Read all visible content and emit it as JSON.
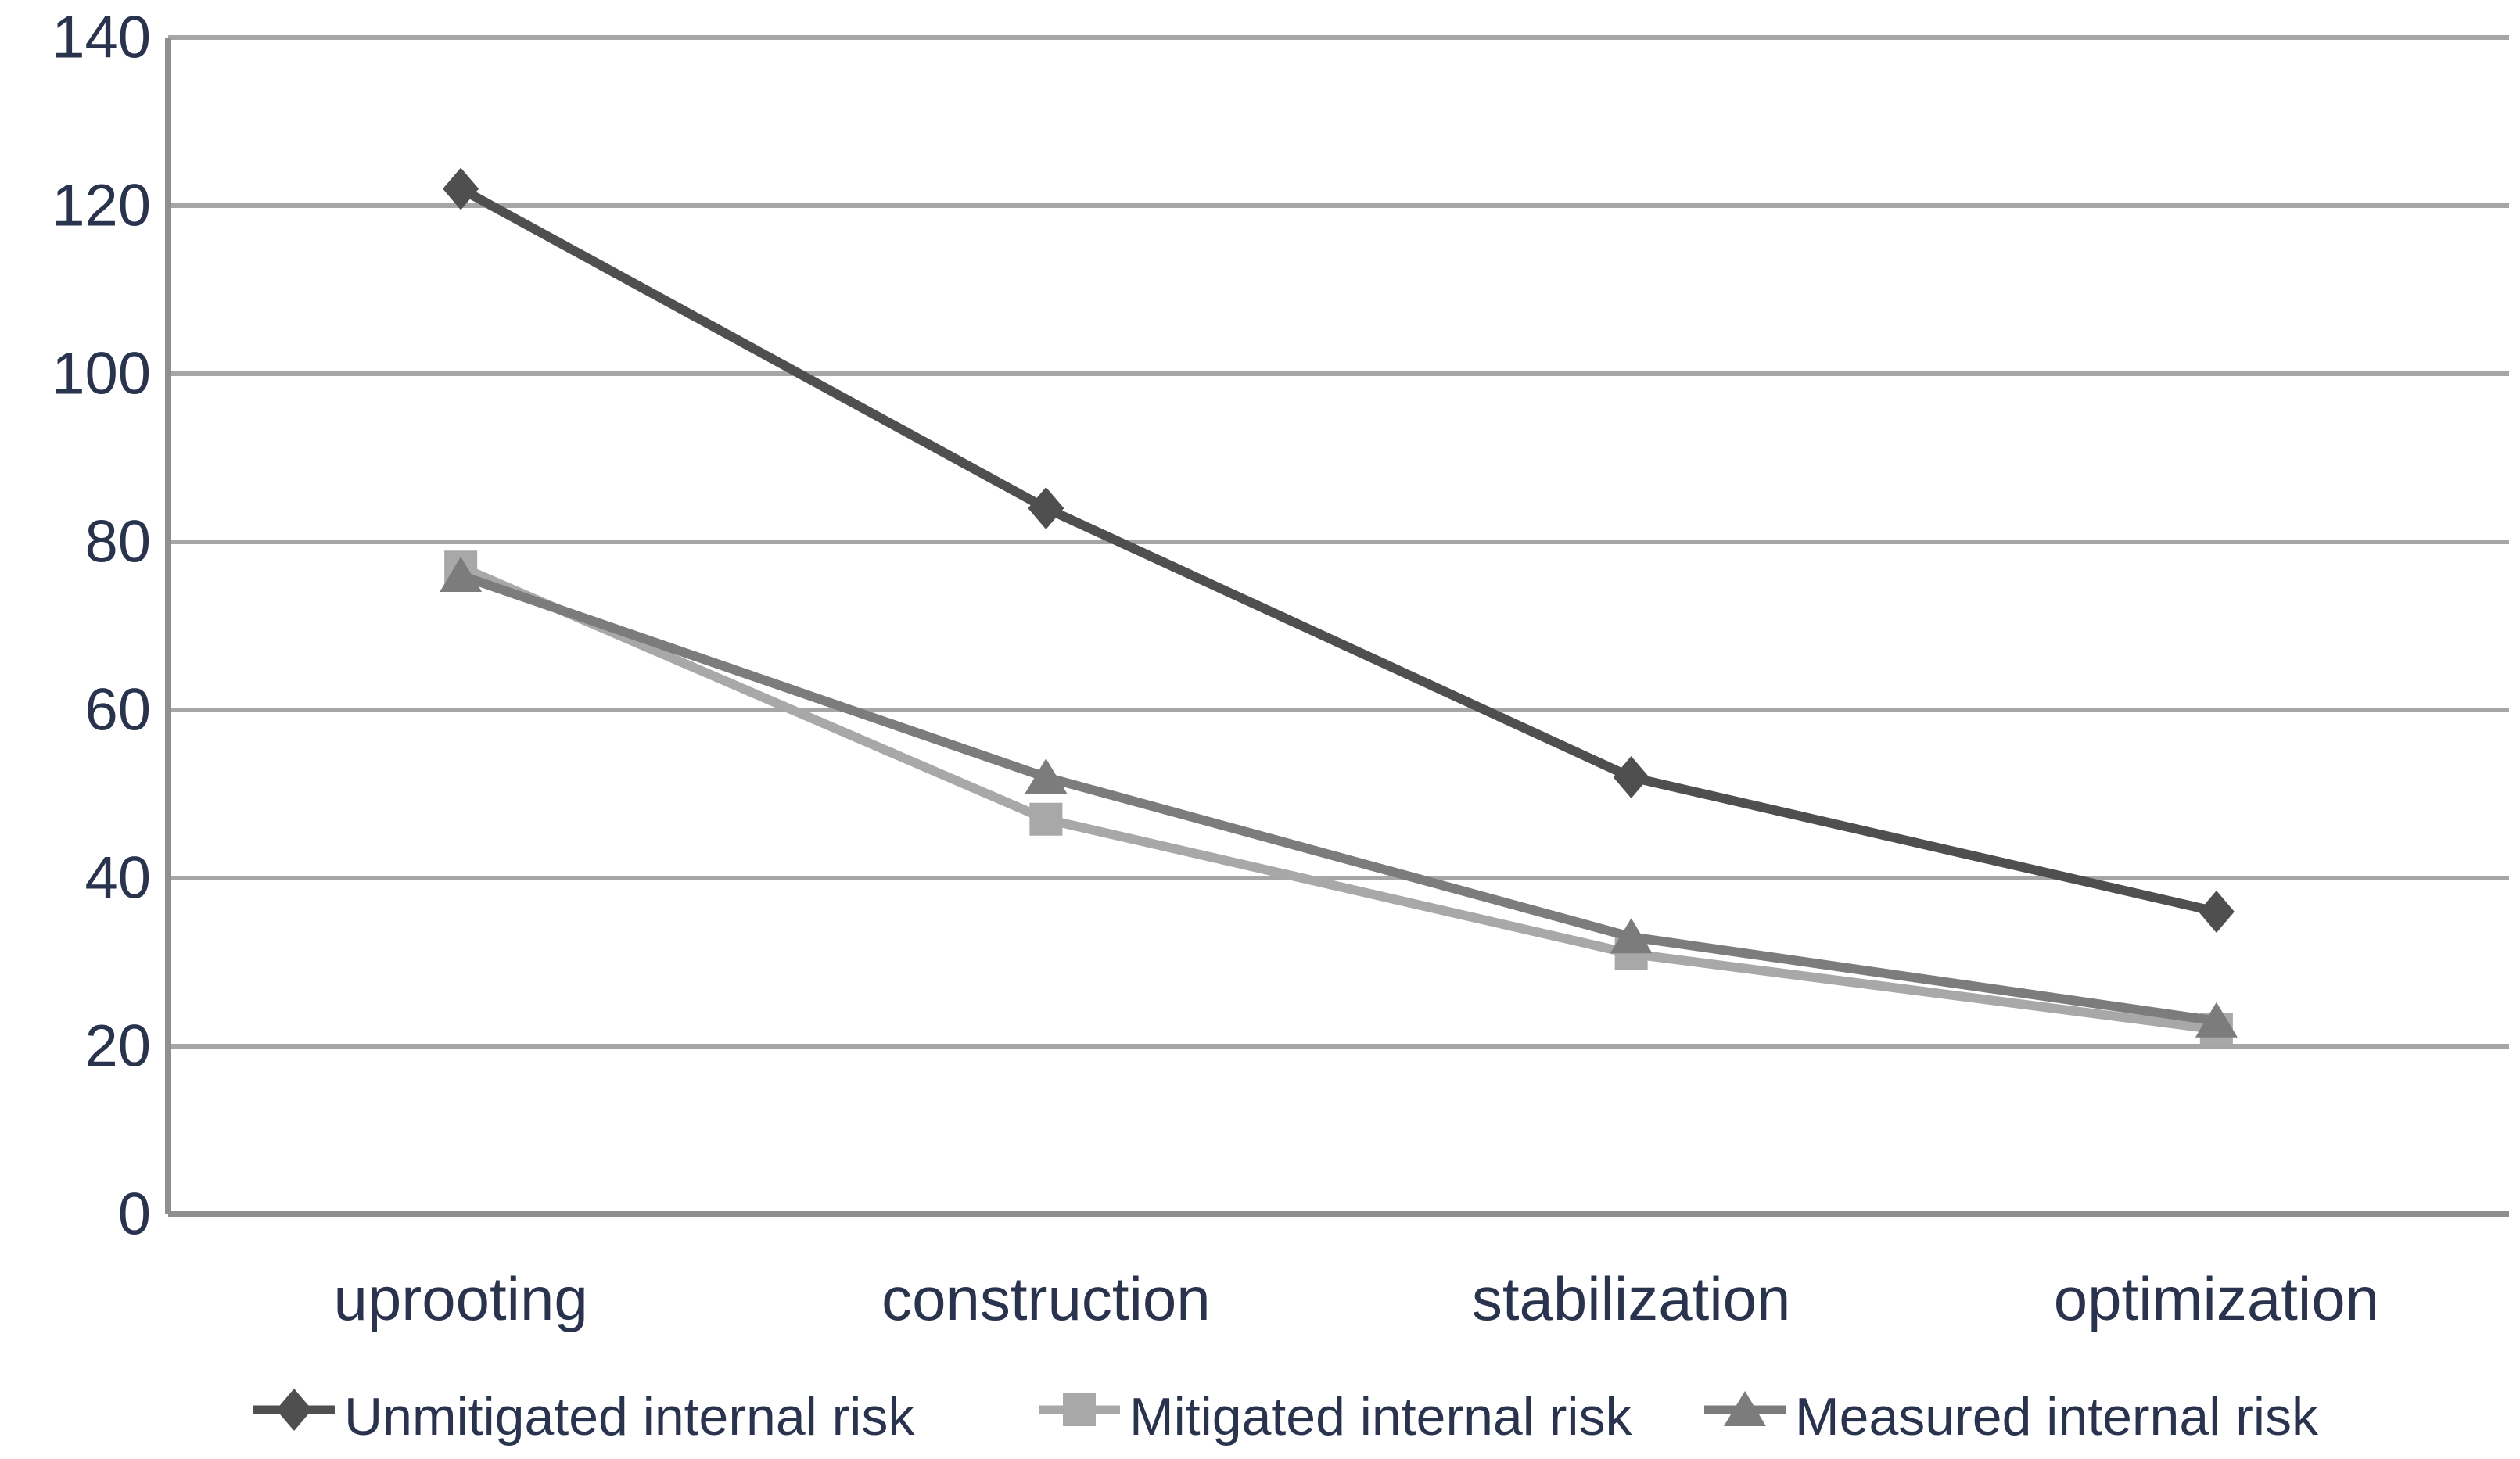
{
  "chart_data": {
    "type": "line",
    "title": "",
    "xlabel": "",
    "ylabel": "",
    "categories": [
      "uprooting",
      "construction",
      "stabilization",
      "optimization"
    ],
    "series": [
      {
        "name": "Unmitigated internal risk",
        "marker": "diamond",
        "color": "#4f4f4f",
        "values": [
          122,
          84,
          52,
          36
        ]
      },
      {
        "name": "Mitigated internal risk",
        "marker": "square",
        "color": "#a8a8a8",
        "values": [
          77,
          47,
          31,
          22
        ]
      },
      {
        "name": "Measured internal risk",
        "marker": "triangle",
        "color": "#7c7c7c",
        "values": [
          76,
          52,
          33,
          23
        ]
      }
    ],
    "ylim": [
      0,
      140
    ],
    "ytick_step": 20,
    "ytick_labels": [
      "0",
      "20",
      "40",
      "60",
      "80",
      "100",
      "120",
      "140"
    ],
    "grid": true,
    "gridlines_horizontal_only": true,
    "legend_position": "bottom"
  },
  "styles": {
    "background": "#ffffff",
    "text_color": "#29334e",
    "grid_color": "#a6a6a6",
    "axis_color": "#8f8f8f"
  }
}
